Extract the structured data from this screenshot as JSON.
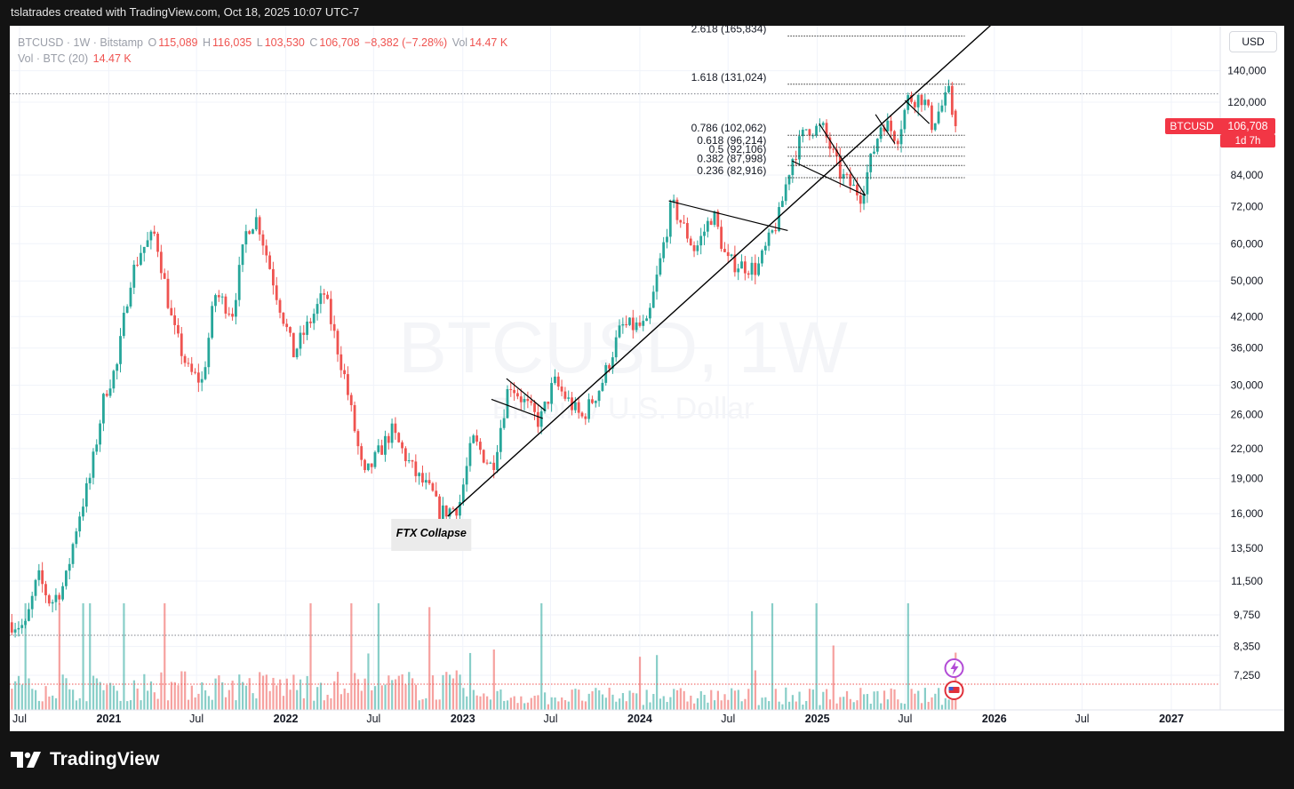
{
  "header": {
    "caption": "tslatrades created with TradingView.com, Oct 18, 2025 10:07 UTC-7"
  },
  "legend": {
    "symbol_line": "BTCUSD · 1W · Bitstamp",
    "o_label": "O",
    "o_value": "115,089",
    "h_label": "H",
    "h_value": "116,035",
    "l_label": "L",
    "l_value": "103,530",
    "c_label": "C",
    "c_value": "106,708",
    "change": "−8,382 (−7.28%)",
    "vol_label": "Vol",
    "vol_value": "14.47 K",
    "vol_indicator": "Vol · BTC (20)",
    "vol_indicator_value": "14.47 K"
  },
  "currency_button": "USD",
  "watermark": {
    "title": "BTCUSD, 1W",
    "subtitle": "Bitcoin / U.S. Dollar"
  },
  "price_badge": {
    "symbol": "BTCUSD",
    "price": "106,708",
    "countdown": "1d 7h"
  },
  "annotation": "FTX Collapse",
  "brand": "TradingView",
  "colors": {
    "up": "#26a69a",
    "down": "#ef5350",
    "badge": "#f23645",
    "grid": "#f0f3fa",
    "trend_line": "#000000"
  },
  "chart_data": {
    "type": "candlestick",
    "symbol": "BTCUSD",
    "interval": "1W",
    "exchange": "Bitstamp",
    "y_scale": "log",
    "x_ticks": [
      {
        "label": "Jul",
        "date": "2020-07-01"
      },
      {
        "label": "2021",
        "date": "2021-01-01"
      },
      {
        "label": "Jul",
        "date": "2021-07-01"
      },
      {
        "label": "2022",
        "date": "2022-01-01"
      },
      {
        "label": "Jul",
        "date": "2022-07-01"
      },
      {
        "label": "2023",
        "date": "2023-01-01"
      },
      {
        "label": "Jul",
        "date": "2023-07-01"
      },
      {
        "label": "2024",
        "date": "2024-01-01"
      },
      {
        "label": "Jul",
        "date": "2024-07-01"
      },
      {
        "label": "2025",
        "date": "2025-01-01"
      },
      {
        "label": "Jul",
        "date": "2025-07-01"
      },
      {
        "label": "2026",
        "date": "2026-01-01"
      },
      {
        "label": "Jul",
        "date": "2026-07-01"
      },
      {
        "label": "2027",
        "date": "2027-01-01"
      }
    ],
    "y_ticks": [
      {
        "label": "140,000",
        "value": 140000
      },
      {
        "label": "120,000",
        "value": 120000
      },
      {
        "label": "84,000",
        "value": 84000
      },
      {
        "label": "72,000",
        "value": 72000
      },
      {
        "label": "60,000",
        "value": 60000
      },
      {
        "label": "50,000",
        "value": 50000
      },
      {
        "label": "42,000",
        "value": 42000
      },
      {
        "label": "36,000",
        "value": 36000
      },
      {
        "label": "30,000",
        "value": 30000
      },
      {
        "label": "26,000",
        "value": 26000
      },
      {
        "label": "22,000",
        "value": 22000
      },
      {
        "label": "19,000",
        "value": 19000
      },
      {
        "label": "16,000",
        "value": 16000
      },
      {
        "label": "13,500",
        "value": 13500
      },
      {
        "label": "11,500",
        "value": 11500
      },
      {
        "label": "9,750",
        "value": 9750
      },
      {
        "label": "8,350",
        "value": 8350
      },
      {
        "label": "7,250",
        "value": 7250
      }
    ],
    "anchors": [
      [
        "2020-06-15",
        9400
      ],
      [
        "2020-07-20",
        9200
      ],
      [
        "2020-08-15",
        11800
      ],
      [
        "2020-09-10",
        10300
      ],
      [
        "2020-10-10",
        11400
      ],
      [
        "2020-11-05",
        15500
      ],
      [
        "2020-12-01",
        19200
      ],
      [
        "2020-12-31",
        29000
      ],
      [
        "2021-01-25",
        33000
      ],
      [
        "2021-02-20",
        50000
      ],
      [
        "2021-03-15",
        58000
      ],
      [
        "2021-04-14",
        63000
      ],
      [
        "2021-05-20",
        40000
      ],
      [
        "2021-06-22",
        32000
      ],
      [
        "2021-07-20",
        30500
      ],
      [
        "2021-08-15",
        47000
      ],
      [
        "2021-09-20",
        43000
      ],
      [
        "2021-10-20",
        65000
      ],
      [
        "2021-11-10",
        68000
      ],
      [
        "2021-12-20",
        47000
      ],
      [
        "2022-01-24",
        35000
      ],
      [
        "2022-03-28",
        47000
      ],
      [
        "2022-05-10",
        31000
      ],
      [
        "2022-06-18",
        19000
      ],
      [
        "2022-08-14",
        24000
      ],
      [
        "2022-10-01",
        19500
      ],
      [
        "2022-11-08",
        17500
      ],
      [
        "2022-11-20",
        16000
      ],
      [
        "2022-12-31",
        16600
      ],
      [
        "2023-01-28",
        23000
      ],
      [
        "2023-03-10",
        20000
      ],
      [
        "2023-04-14",
        30500
      ],
      [
        "2023-06-15",
        25000
      ],
      [
        "2023-07-15",
        30500
      ],
      [
        "2023-09-10",
        25500
      ],
      [
        "2023-10-20",
        30000
      ],
      [
        "2023-12-01",
        40000
      ],
      [
        "2024-01-23",
        40000
      ],
      [
        "2024-03-14",
        73000
      ],
      [
        "2024-05-01",
        58000
      ],
      [
        "2024-06-07",
        70000
      ],
      [
        "2024-07-05",
        55000
      ],
      [
        "2024-08-05",
        54000
      ],
      [
        "2024-09-06",
        53000
      ],
      [
        "2024-10-20",
        68000
      ],
      [
        "2024-11-15",
        90000
      ],
      [
        "2024-12-17",
        106000
      ],
      [
        "2025-01-20",
        105000
      ],
      [
        "2025-02-25",
        84000
      ],
      [
        "2025-04-08",
        76000
      ],
      [
        "2025-05-22",
        110000
      ],
      [
        "2025-06-22",
        101000
      ],
      [
        "2025-07-14",
        122000
      ],
      [
        "2025-08-14",
        123000
      ],
      [
        "2025-09-01",
        108000
      ],
      [
        "2025-10-06",
        125000
      ],
      [
        "2025-10-18",
        106708
      ]
    ],
    "last": {
      "open": 115089,
      "high": 116035,
      "low": 103530,
      "close": 106708,
      "change": -8382,
      "change_pct": -7.28,
      "volume_k": 14.47
    },
    "fibonacci": [
      {
        "label": "2.618 (165,834)",
        "value": 165834
      },
      {
        "label": "1.618 (131,024)",
        "value": 131024
      },
      {
        "label": "0.786 (102,062)",
        "value": 102062
      },
      {
        "label": "0.618 (96,214)",
        "value": 96214
      },
      {
        "label": "0.5 (92,106)",
        "value": 92106
      },
      {
        "label": "0.382 (87,998)",
        "value": 87998
      },
      {
        "label": "0.236 (82,916)",
        "value": 82916
      }
    ],
    "trendlines": [
      {
        "from": [
          "2022-12-01",
          15800
        ],
        "to": [
          "2026-02-01",
          190000
        ]
      },
      {
        "from": [
          "2023-03-01",
          28000
        ],
        "to": [
          "2023-06-15",
          25500
        ]
      },
      {
        "from": [
          "2023-04-01",
          31000
        ],
        "to": [
          "2023-06-20",
          26500
        ]
      },
      {
        "from": [
          "2024-03-01",
          74000
        ],
        "to": [
          "2024-11-01",
          64000
        ]
      },
      {
        "from": [
          "2024-11-10",
          90000
        ],
        "to": [
          "2025-04-10",
          76000
        ]
      },
      {
        "from": [
          "2025-01-05",
          108000
        ],
        "to": [
          "2025-04-10",
          76000
        ]
      },
      {
        "from": [
          "2025-05-01",
          113000
        ],
        "to": [
          "2025-06-10",
          98000
        ]
      },
      {
        "from": [
          "2025-07-01",
          121000
        ],
        "to": [
          "2025-08-20",
          108000
        ]
      }
    ]
  }
}
